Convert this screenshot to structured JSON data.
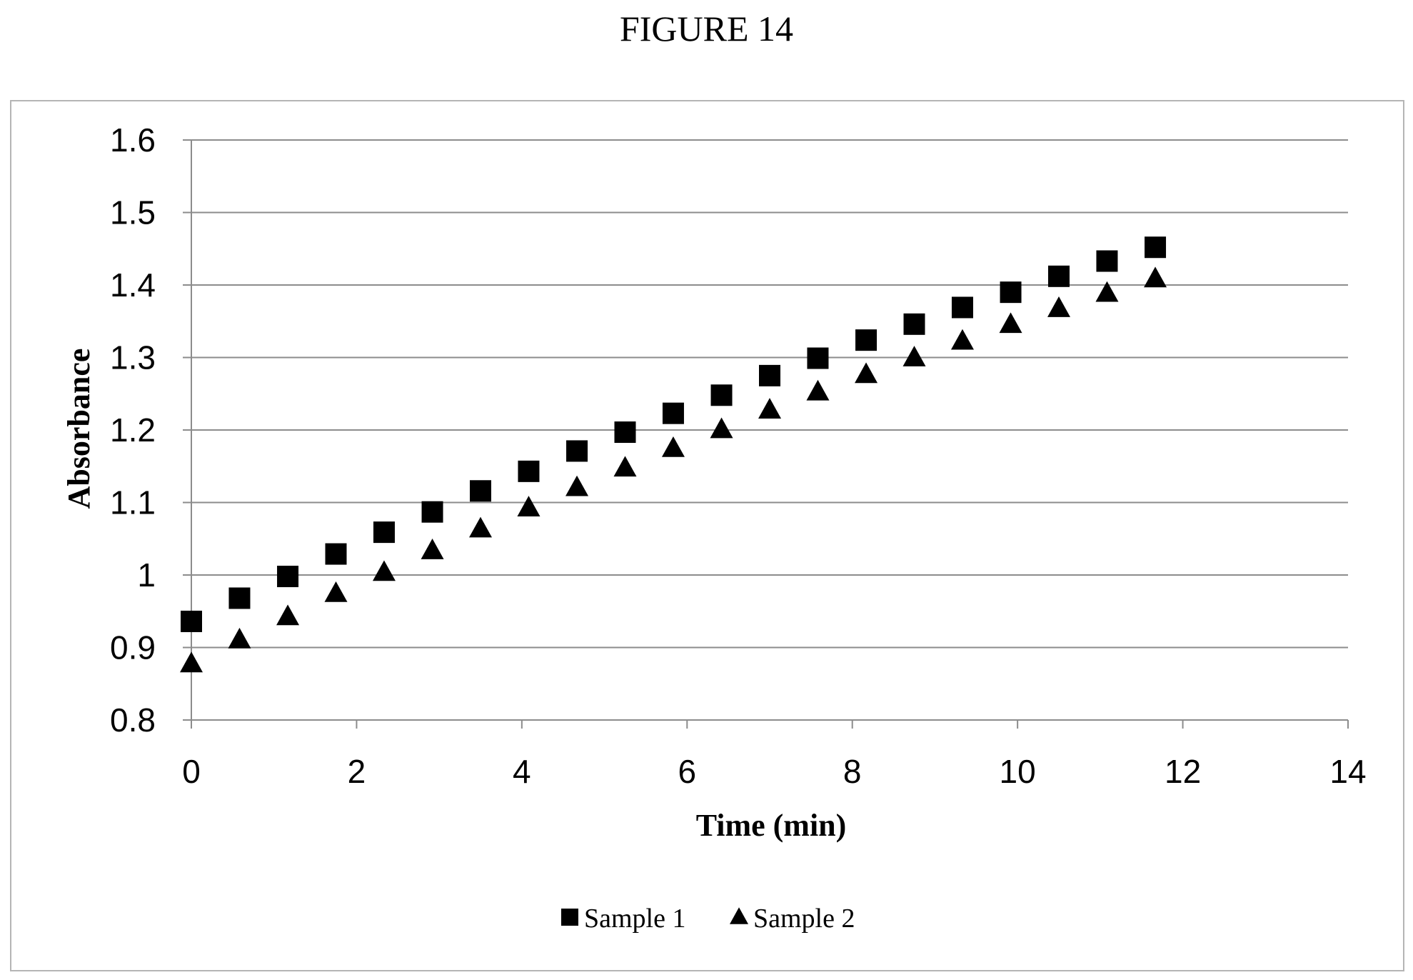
{
  "figure_title": "FIGURE 14",
  "chart_data": {
    "type": "scatter",
    "title": "",
    "xlabel": "Time (min)",
    "ylabel": "Absorbance",
    "xlim": [
      0,
      14
    ],
    "ylim": [
      0.8,
      1.6
    ],
    "xticks": [
      "0",
      "2",
      "4",
      "6",
      "8",
      "10",
      "12",
      "14"
    ],
    "yticks": [
      "0.8",
      "0.9",
      "1",
      "1.1",
      "1.2",
      "1.3",
      "1.4",
      "1.5",
      "1.6"
    ],
    "grid": "horizontal",
    "legend_position": "bottom",
    "series": [
      {
        "name": "Sample 1",
        "marker": "square",
        "color": "#000000",
        "x": [
          0,
          0.583,
          1.167,
          1.75,
          2.333,
          2.917,
          3.5,
          4.083,
          4.667,
          5.25,
          5.833,
          6.417,
          7.0,
          7.583,
          8.167,
          8.75,
          9.333,
          9.917,
          10.5,
          11.083,
          11.667
        ],
        "y": [
          0.936,
          0.968,
          0.998,
          1.029,
          1.059,
          1.087,
          1.116,
          1.143,
          1.171,
          1.197,
          1.223,
          1.248,
          1.275,
          1.299,
          1.324,
          1.346,
          1.369,
          1.39,
          1.412,
          1.433,
          1.452
        ]
      },
      {
        "name": "Sample 2",
        "marker": "triangle",
        "color": "#000000",
        "x": [
          0,
          0.583,
          1.167,
          1.75,
          2.333,
          2.917,
          3.5,
          4.083,
          4.667,
          5.25,
          5.833,
          6.417,
          7.0,
          7.583,
          8.167,
          8.75,
          9.333,
          9.917,
          10.5,
          11.083,
          11.667
        ],
        "y": [
          0.88,
          0.913,
          0.945,
          0.977,
          1.006,
          1.036,
          1.066,
          1.095,
          1.123,
          1.15,
          1.177,
          1.203,
          1.23,
          1.255,
          1.279,
          1.302,
          1.325,
          1.348,
          1.37,
          1.391,
          1.411
        ]
      }
    ]
  }
}
